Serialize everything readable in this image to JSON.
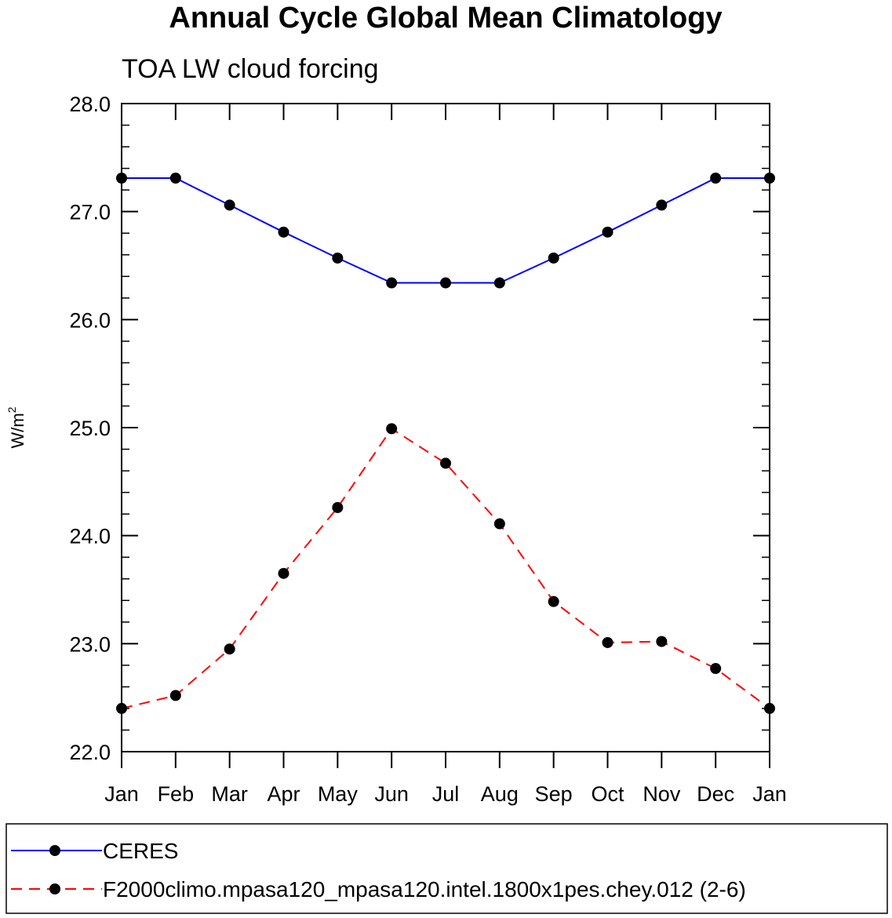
{
  "chart_data": {
    "type": "line",
    "title": "Annual Cycle Global Mean Climatology",
    "subtitle": "TOA LW cloud forcing",
    "xlabel": "",
    "ylabel": "W/m",
    "ylabel_superscript": "2",
    "categories": [
      "Jan",
      "Feb",
      "Mar",
      "Apr",
      "May",
      "Jun",
      "Jul",
      "Aug",
      "Sep",
      "Oct",
      "Nov",
      "Dec",
      "Jan"
    ],
    "ylim": [
      22.0,
      28.0
    ],
    "yticks": [
      "22.0",
      "23.0",
      "24.0",
      "25.0",
      "26.0",
      "27.0",
      "28.0"
    ],
    "grid": false,
    "legend_position": "bottom",
    "series": [
      {
        "name": "CERES",
        "color": "#0000ff",
        "dash": "solid",
        "marker_color": "#000000",
        "values": [
          27.31,
          27.31,
          27.06,
          26.81,
          26.57,
          26.34,
          26.34,
          26.34,
          26.57,
          26.81,
          27.06,
          27.31,
          27.31
        ]
      },
      {
        "name": "F2000climo.mpasa120_mpasa120.intel.1800x1pes.chey.012 (2-6)",
        "color": "#ff0000",
        "dash": "dashed",
        "marker_color": "#000000",
        "values": [
          22.4,
          22.52,
          22.95,
          23.65,
          24.26,
          24.99,
          24.67,
          24.11,
          23.39,
          23.01,
          23.02,
          22.77,
          22.4
        ]
      }
    ]
  }
}
